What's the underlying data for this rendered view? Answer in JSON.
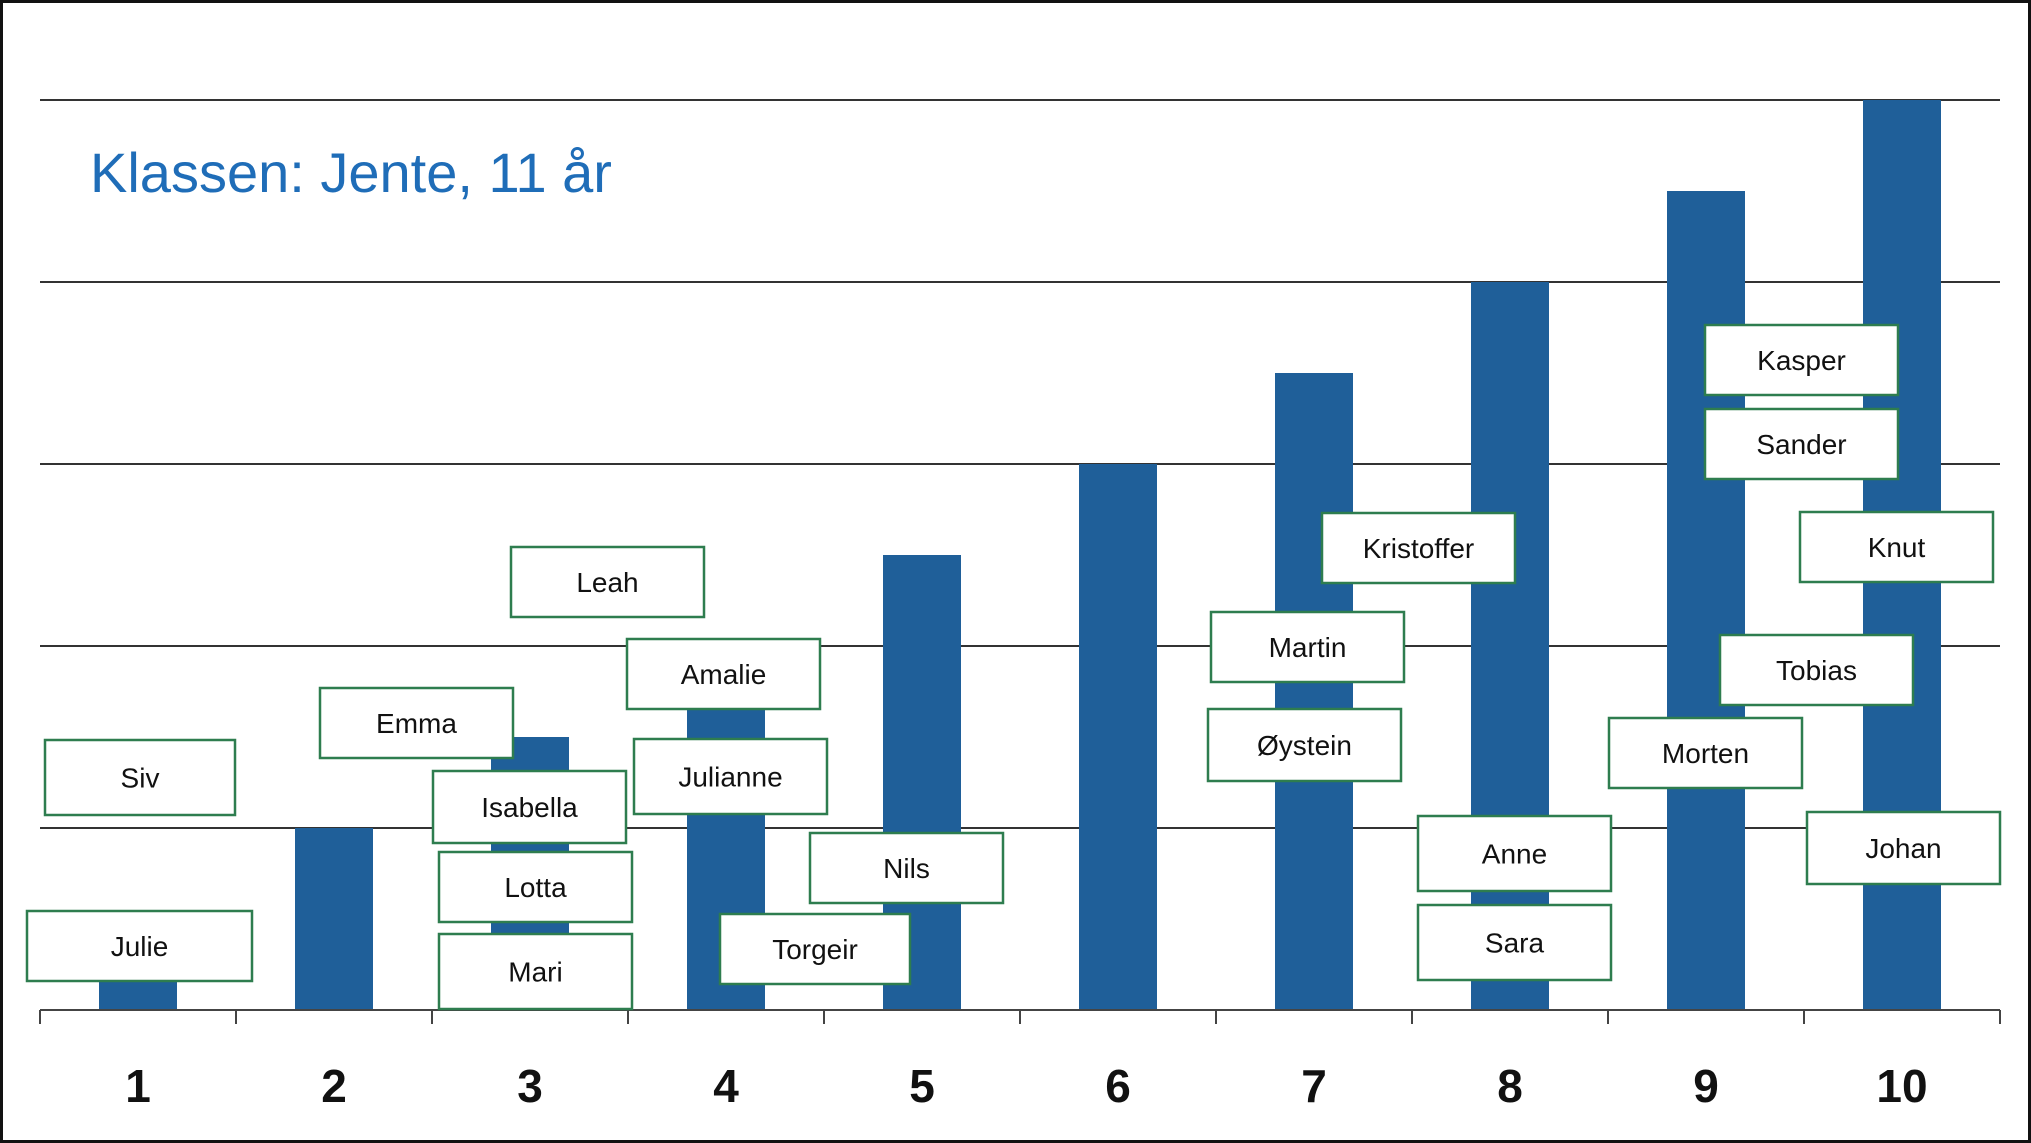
{
  "chart_data": {
    "type": "bar",
    "title": "Klassen: Jente, 11 år",
    "categories": [
      "1",
      "2",
      "3",
      "4",
      "5",
      "6",
      "7",
      "8",
      "9",
      "10"
    ],
    "values": [
      0.3,
      1,
      1.5,
      2,
      2.5,
      3,
      3.5,
      4,
      4.5,
      5
    ],
    "ylim": [
      0,
      5
    ],
    "grid": true,
    "bar_color": "#1f5f99",
    "label_border_color": "#2e7d4f",
    "title_color": "#1f6db8",
    "name_labels": [
      {
        "name": "Siv",
        "category": "1"
      },
      {
        "name": "Julie",
        "category": "1"
      },
      {
        "name": "Emma",
        "category": "2"
      },
      {
        "name": "Leah",
        "category": "3"
      },
      {
        "name": "Isabella",
        "category": "3"
      },
      {
        "name": "Lotta",
        "category": "3"
      },
      {
        "name": "Mari",
        "category": "3"
      },
      {
        "name": "Amalie",
        "category": "4"
      },
      {
        "name": "Julianne",
        "category": "4"
      },
      {
        "name": "Torgeir",
        "category": "4"
      },
      {
        "name": "Nils",
        "category": "5"
      },
      {
        "name": "Martin",
        "category": "7"
      },
      {
        "name": "Øystein",
        "category": "7"
      },
      {
        "name": "Kristoffer",
        "category": "8"
      },
      {
        "name": "Anne",
        "category": "8"
      },
      {
        "name": "Sara",
        "category": "8"
      },
      {
        "name": "Kasper",
        "category": "9"
      },
      {
        "name": "Sander",
        "category": "9"
      },
      {
        "name": "Morten",
        "category": "9"
      },
      {
        "name": "Tobias",
        "category": "9"
      },
      {
        "name": "Knut",
        "category": "10"
      },
      {
        "name": "Johan",
        "category": "10"
      }
    ]
  }
}
